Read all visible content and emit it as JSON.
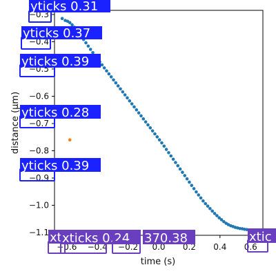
{
  "chart_data": {
    "type": "scatter",
    "title": "",
    "xlabel": "time (s)",
    "ylabel": "distance (μm)",
    "xlim": [
      -0.68,
      0.68
    ],
    "ylim": [
      -1.11,
      -0.285
    ],
    "xticks": [
      -0.6,
      -0.4,
      -0.2,
      0.0,
      0.2,
      0.4,
      0.6
    ],
    "xtick_labels": [
      "−0.6",
      "−0.4",
      "−0.2",
      "0.0",
      "0.2",
      "0.4",
      "0.6"
    ],
    "yticks": [
      -0.3,
      -0.4,
      -0.5,
      -0.6,
      -0.7,
      -0.8,
      -0.9,
      -1.0,
      -1.1
    ],
    "ytick_labels": [
      "−0.3",
      "−0.4",
      "−0.5",
      "−0.6",
      "−0.7",
      "−0.8",
      "−0.9",
      "−1.0",
      "−1.1"
    ],
    "series": [
      {
        "color": "#1f77b4",
        "x": [
          -0.63,
          -0.61,
          -0.595,
          -0.58,
          -0.565,
          -0.55,
          -0.535,
          -0.52,
          -0.505,
          -0.49,
          -0.475,
          -0.46,
          -0.445,
          -0.43,
          -0.415,
          -0.4,
          -0.385,
          -0.37,
          -0.355,
          -0.34,
          -0.325,
          -0.31,
          -0.295,
          -0.28,
          -0.265,
          -0.25,
          -0.235,
          -0.22,
          -0.205,
          -0.19,
          -0.175,
          -0.16,
          -0.145,
          -0.13,
          -0.115,
          -0.1,
          -0.085,
          -0.07,
          -0.055,
          -0.04,
          -0.025,
          -0.01,
          0.005,
          0.02,
          0.035,
          0.05,
          0.065,
          0.08,
          0.095,
          0.11,
          0.125,
          0.14,
          0.155,
          0.17,
          0.185,
          0.2,
          0.215,
          0.23,
          0.245,
          0.26,
          0.275,
          0.29,
          0.305,
          0.32,
          0.335,
          0.35,
          0.365,
          0.38,
          0.395,
          0.41,
          0.425,
          0.44,
          0.455,
          0.47,
          0.485,
          0.5,
          0.515,
          0.53,
          0.545,
          0.56,
          0.575,
          0.59,
          0.605,
          0.62,
          0.635
        ],
        "y": [
          -0.315,
          -0.322,
          -0.325,
          -0.33,
          -0.338,
          -0.347,
          -0.357,
          -0.368,
          -0.38,
          -0.392,
          -0.404,
          -0.416,
          -0.428,
          -0.44,
          -0.452,
          -0.463,
          -0.474,
          -0.485,
          -0.496,
          -0.507,
          -0.518,
          -0.529,
          -0.54,
          -0.551,
          -0.562,
          -0.573,
          -0.584,
          -0.595,
          -0.606,
          -0.617,
          -0.628,
          -0.639,
          -0.65,
          -0.661,
          -0.672,
          -0.683,
          -0.694,
          -0.705,
          -0.716,
          -0.727,
          -0.738,
          -0.749,
          -0.76,
          -0.771,
          -0.783,
          -0.795,
          -0.807,
          -0.819,
          -0.831,
          -0.843,
          -0.855,
          -0.867,
          -0.879,
          -0.891,
          -0.903,
          -0.915,
          -0.927,
          -0.939,
          -0.951,
          -0.962,
          -0.973,
          -0.984,
          -0.994,
          -1.003,
          -1.012,
          -1.021,
          -1.03,
          -1.038,
          -1.046,
          -1.053,
          -1.06,
          -1.066,
          -1.071,
          -1.075,
          -1.078,
          -1.081,
          -1.083,
          -1.085,
          -1.086,
          -1.088,
          -1.089,
          -1.091,
          -1.093,
          -1.095,
          -1.097
        ]
      },
      {
        "color": "#ff7f0e",
        "x": [
          -0.58
        ],
        "y": [
          -0.76
        ]
      }
    ]
  },
  "annotations": [
    {
      "text": "yticks 0.31",
      "color": "#1a22ff"
    },
    {
      "text": "yticks 0.37",
      "color": "#1a22ff"
    },
    {
      "text": "yticks 0.39",
      "color": "#1a22ff"
    },
    {
      "text": "yticks 0.28",
      "color": "#1a22ff"
    },
    {
      "text": "yticks 0.39",
      "color": "#1a22ff"
    },
    {
      "text": "xt",
      "color": "#6a3fbf"
    },
    {
      "text": "xticks 0.24",
      "color": "#6a3fbf"
    },
    {
      "text": "370.38",
      "color": "#6a3fbf"
    },
    {
      "text": "xtic",
      "color": "#6a3fbf"
    }
  ]
}
